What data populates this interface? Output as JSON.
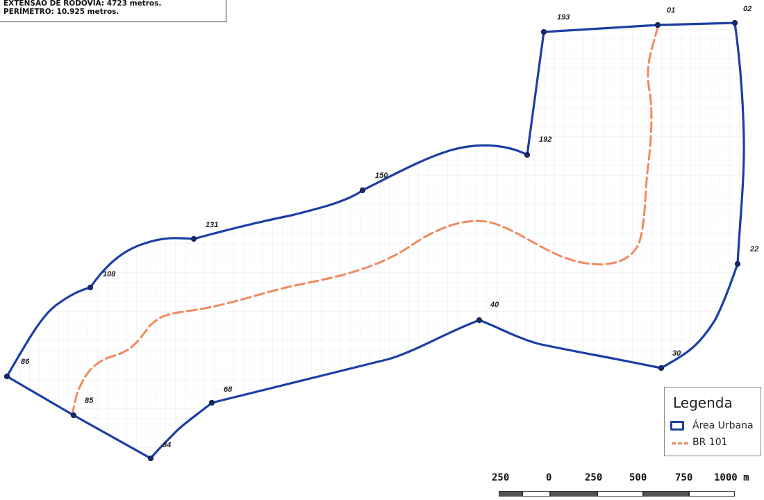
{
  "info": {
    "line1": "EXTENSÃO DE RODOVIA: 4723 metros.",
    "line2": "PERÍMETRO: 10.925 metros."
  },
  "colors": {
    "boundary": "#1b3ea6",
    "road": "#f08a5d",
    "grid": "#e3e6ee"
  },
  "points": [
    {
      "label": "01"
    },
    {
      "label": "02"
    },
    {
      "label": "22"
    },
    {
      "label": "30"
    },
    {
      "label": "40"
    },
    {
      "label": "68"
    },
    {
      "label": "84"
    },
    {
      "label": "85"
    },
    {
      "label": "86"
    },
    {
      "label": "108"
    },
    {
      "label": "131"
    },
    {
      "label": "150"
    },
    {
      "label": "192"
    },
    {
      "label": "193"
    }
  ],
  "legend": {
    "title": "Legenda",
    "items": [
      {
        "label": "Área Urbana",
        "icon": "area-swatch-icon"
      },
      {
        "label": "BR 101",
        "icon": "dashed-line-icon"
      }
    ]
  },
  "scale": {
    "labels": [
      "250",
      "0",
      "250",
      "500",
      "750",
      "1000 m"
    ]
  }
}
